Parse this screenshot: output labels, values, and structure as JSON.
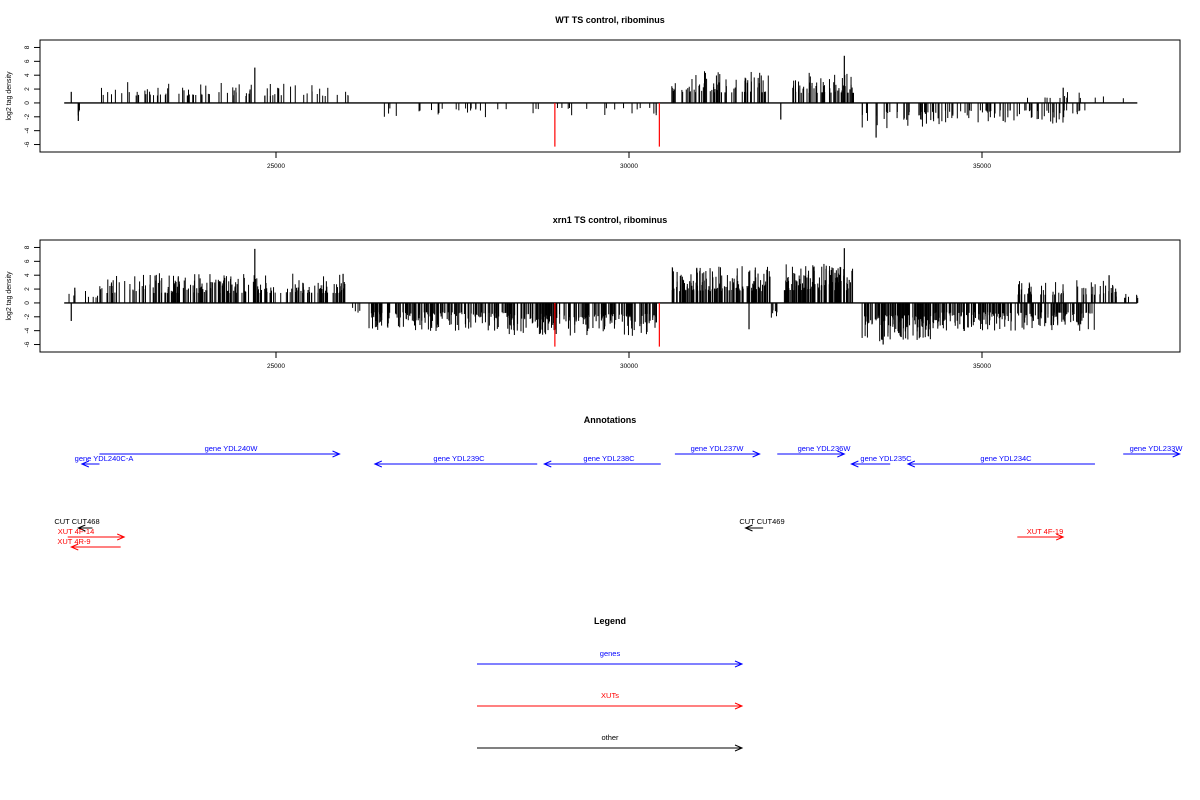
{
  "chart_data": [
    {
      "type": "bar",
      "title": "WT TS control, ribominus",
      "ylabel": "log2 tag density",
      "xlim": [
        21800,
        37800
      ],
      "ylim": [
        -6.5,
        8.5
      ],
      "yticks": [
        -6,
        -4,
        -2,
        0,
        2,
        4,
        6,
        8
      ],
      "xticks": [
        25000,
        30000,
        35000
      ],
      "grid": false,
      "bar_color": "#000000",
      "highlight_color": "#ff0000",
      "segments": [
        {
          "from": 22000,
          "to": 22250,
          "sign": -1,
          "amp": 1.8,
          "n": 3
        },
        {
          "from": 22500,
          "to": 24400,
          "sign": 1,
          "amp": 2.2,
          "n": 45
        },
        {
          "from": 24400,
          "to": 26100,
          "sign": 1,
          "amp": 2.0,
          "n": 40
        },
        {
          "from": 26500,
          "to": 28300,
          "sign": -1,
          "amp": 1.4,
          "n": 22
        },
        {
          "from": 28300,
          "to": 30400,
          "sign": -1,
          "amp": 1.2,
          "n": 20
        },
        {
          "from": 30600,
          "to": 32000,
          "sign": 1,
          "amp": 3.5,
          "n": 70
        },
        {
          "from": 32300,
          "to": 33200,
          "sign": 1,
          "amp": 3.3,
          "n": 60
        },
        {
          "from": 33300,
          "to": 34400,
          "sign": -1,
          "amp": 2.8,
          "n": 40
        },
        {
          "from": 34400,
          "to": 36500,
          "sign": -1,
          "amp": 2.2,
          "n": 70
        },
        {
          "from": 35600,
          "to": 36400,
          "sign": 1,
          "amp": 1.2,
          "n": 10
        },
        {
          "from": 36600,
          "to": 37200,
          "sign": 1,
          "amp": 0.8,
          "n": 3
        }
      ],
      "peaks": [
        {
          "x": 22100,
          "y": 1.6
        },
        {
          "x": 22200,
          "y": -2.6
        },
        {
          "x": 24700,
          "y": 5.1
        },
        {
          "x": 32150,
          "y": -2.4
        },
        {
          "x": 33050,
          "y": 6.8
        },
        {
          "x": 33500,
          "y": -5.0
        },
        {
          "x": 35300,
          "y": -2.6
        },
        {
          "x": 36150,
          "y": 2.2
        }
      ],
      "highlights": [
        {
          "x": 28950,
          "y": -6.3
        },
        {
          "x": 30430,
          "y": -6.3
        }
      ]
    },
    {
      "type": "bar",
      "title": "xrn1 TS control, ribominus",
      "ylabel": "log2 tag density",
      "xlim": [
        21800,
        37800
      ],
      "ylim": [
        -6.5,
        8.5
      ],
      "yticks": [
        -6,
        -4,
        -2,
        0,
        2,
        4,
        6,
        8
      ],
      "xticks": [
        25000,
        30000,
        35000
      ],
      "grid": false,
      "bar_color": "#000000",
      "highlight_color": "#ff0000",
      "segments": [
        {
          "from": 22000,
          "to": 22500,
          "sign": 1,
          "amp": 1.2,
          "n": 8
        },
        {
          "from": 22500,
          "to": 26000,
          "sign": 1,
          "amp": 3.2,
          "n": 230
        },
        {
          "from": 26000,
          "to": 26200,
          "sign": -1,
          "amp": 1.0,
          "n": 4
        },
        {
          "from": 26300,
          "to": 28300,
          "sign": -1,
          "amp": 3.0,
          "n": 160
        },
        {
          "from": 28300,
          "to": 30400,
          "sign": -1,
          "amp": 3.6,
          "n": 190
        },
        {
          "from": 30600,
          "to": 32000,
          "sign": 1,
          "amp": 4.0,
          "n": 150
        },
        {
          "from": 32000,
          "to": 32100,
          "sign": -1,
          "amp": 1.5,
          "n": 6
        },
        {
          "from": 32200,
          "to": 33200,
          "sign": 1,
          "amp": 4.4,
          "n": 130
        },
        {
          "from": 33300,
          "to": 34300,
          "sign": -1,
          "amp": 4.2,
          "n": 130
        },
        {
          "from": 34300,
          "to": 36600,
          "sign": -1,
          "amp": 3.0,
          "n": 200
        },
        {
          "from": 35500,
          "to": 36900,
          "sign": 1,
          "amp": 2.5,
          "n": 60
        },
        {
          "from": 36900,
          "to": 37250,
          "sign": 1,
          "amp": 1.2,
          "n": 10
        }
      ],
      "peaks": [
        {
          "x": 22100,
          "y": -2.6
        },
        {
          "x": 22150,
          "y": 2.2
        },
        {
          "x": 24700,
          "y": 7.8
        },
        {
          "x": 25950,
          "y": 4.2
        },
        {
          "x": 33050,
          "y": 7.9
        },
        {
          "x": 33600,
          "y": -6.0
        },
        {
          "x": 31700,
          "y": -3.8
        },
        {
          "x": 36800,
          "y": 4.0
        }
      ],
      "highlights": [
        {
          "x": 28950,
          "y": -6.3
        },
        {
          "x": 30430,
          "y": -6.3
        }
      ]
    }
  ],
  "annotations": {
    "title": "Annotations",
    "genes": [
      {
        "label": "gene YDL240C-A",
        "dir": "left",
        "from": 22250,
        "to": 22500
      },
      {
        "label": "gene YDL240W",
        "dir": "right",
        "from": 22500,
        "to": 25900
      },
      {
        "label": "gene YDL239C",
        "dir": "left",
        "from": 26400,
        "to": 28700
      },
      {
        "label": "gene YDL238C",
        "dir": "left",
        "from": 28800,
        "to": 30450
      },
      {
        "label": "gene YDL237W",
        "dir": "right",
        "from": 30650,
        "to": 31850
      },
      {
        "label": "gene YDL236W",
        "dir": "right",
        "from": 32100,
        "to": 33050
      },
      {
        "label": "gene YDL235C",
        "dir": "left",
        "from": 33150,
        "to": 33700
      },
      {
        "label": "gene YDL234C",
        "dir": "left",
        "from": 33950,
        "to": 36600
      },
      {
        "label": "gene YDL233W",
        "dir": "right",
        "from": 37000,
        "to": 37800
      }
    ],
    "cuts": [
      {
        "label": "CUT CUT468",
        "dir": "left",
        "from": 22200,
        "to": 22400
      },
      {
        "label": "CUT CUT469",
        "dir": "left",
        "from": 31650,
        "to": 31900
      }
    ],
    "xuts": [
      {
        "label": "XUT 4F-14",
        "dir": "right",
        "from": 22050,
        "to": 22850
      },
      {
        "label": "XUT 4R-9",
        "dir": "left",
        "from": 22100,
        "to": 22800
      },
      {
        "label": "XUT 4F-19",
        "dir": "right",
        "from": 35500,
        "to": 36150
      }
    ]
  },
  "legend": {
    "title": "Legend",
    "items": [
      {
        "label": "genes",
        "color": "#0000ff"
      },
      {
        "label": "XUTs",
        "color": "#ff0000"
      },
      {
        "label": "other",
        "color": "#000000"
      }
    ]
  }
}
